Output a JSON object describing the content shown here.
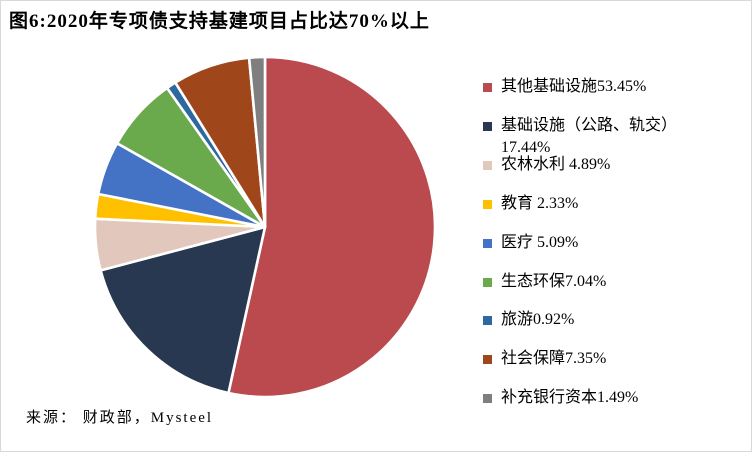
{
  "page": {
    "source": "来源： 财政部，Mysteel"
  },
  "chart_data": {
    "type": "pie",
    "title": "图6:2020年专项债支持基建项目占比达70%以上",
    "start_angle_deg": 0,
    "direction": "clockwise",
    "legend_position": "right",
    "categories": [
      "其他基础设施",
      "基础设施（公路、轨交）",
      "农林水利",
      "教育",
      "医疗",
      "生态环保",
      "旅游",
      "社会保障",
      "补充银行资本"
    ],
    "values": [
      53.45,
      17.44,
      4.89,
      2.33,
      5.09,
      7.04,
      0.92,
      7.35,
      1.49
    ],
    "colors": [
      "#BA4A4D",
      "#283850",
      "#E2C8BC",
      "#FFC000",
      "#4472C4",
      "#6BA94D",
      "#2D689E",
      "#A0461B",
      "#7F7F7F"
    ],
    "legend_labels": [
      "其他基础设施53.45%",
      "基础设施（公路、轨交）17.44%",
      "农林水利 4.89%",
      "教育 2.33%",
      "医疗 5.09%",
      "生态环保7.04%",
      "旅游0.92%",
      "社会保障7.35%",
      "补充银行资本1.49%"
    ]
  }
}
